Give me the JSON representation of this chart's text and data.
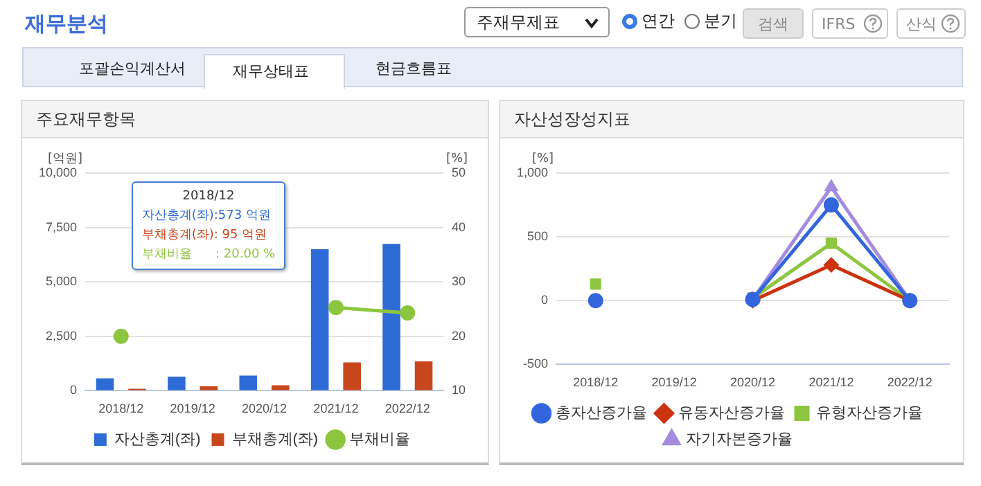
{
  "chart_data": [
    {
      "type": "other",
      "annotations": [
        "재무분석",
        "주재무제표",
        "연간",
        "분기",
        "검색",
        "IFRS",
        "산식",
        "포괄손익계산서",
        "재무상태표",
        "현금흐름표"
      ]
    },
    {
      "type": "bar",
      "title": "주요재무항목",
      "ylabel": "[억원]",
      "y2label": "[%]",
      "categories": [
        "2018/12",
        "2019/12",
        "2020/12",
        "2021/12",
        "2022/12"
      ],
      "series": [
        {
          "name": "자산총계(좌)",
          "color": "#2e6bd6",
          "values": [
            573,
            650,
            700,
            6500,
            6750
          ]
        },
        {
          "name": "부채총계(좌)",
          "color": "#c8461c",
          "values": [
            95,
            200,
            250,
            1300,
            1350
          ]
        },
        {
          "name": "부채비율",
          "type": "line",
          "axis": "y2",
          "marker": "circle",
          "color": "#8cc63f",
          "values": [
            20,
            null,
            null,
            25.3,
            24.3
          ]
        }
      ],
      "ylim": [
        0,
        10000
      ],
      "yticks": [
        {
          "value": 0,
          "label": "0"
        },
        {
          "value": 2500,
          "label": "2,500"
        },
        {
          "value": 5000,
          "label": "5,000"
        },
        {
          "value": 7500,
          "label": "7,500"
        },
        {
          "value": 10000,
          "label": "10,000"
        }
      ],
      "y2lim": [
        10,
        50
      ],
      "y2ticks": [
        10,
        20,
        30,
        40,
        50
      ],
      "grid": "y",
      "legend": "bottom",
      "annotations": [
        "2018/12",
        "자산총계(좌):573 억원",
        "부채총계(좌): 95 억원",
        "부채비율      : 20.00 %"
      ]
    },
    {
      "type": "line",
      "title": "자산성장성지표",
      "ylabel": "[%]",
      "categories": [
        "2018/12",
        "2019/12",
        "2020/12",
        "2021/12",
        "2022/12"
      ],
      "series": [
        {
          "name": "총자산증가율",
          "color": "#3366dd",
          "marker": "circle",
          "values": [
            0,
            null,
            10,
            750,
            0
          ]
        },
        {
          "name": "유동자산증가율",
          "color": "#cc3311",
          "marker": "diamond",
          "values": [
            null,
            null,
            0,
            280,
            0
          ]
        },
        {
          "name": "유형자산증가율",
          "color": "#8dc63f",
          "marker": "square",
          "values": [
            130,
            null,
            20,
            450,
            0
          ]
        },
        {
          "name": "자기자본증가율",
          "color": "#a58be0",
          "marker": "triangle",
          "values": [
            null,
            null,
            10,
            890,
            0
          ]
        }
      ],
      "ylim": [
        -500,
        1000
      ],
      "yticks": [
        {
          "value": -500,
          "label": "-500"
        },
        {
          "value": 0,
          "label": "0"
        },
        {
          "value": 500,
          "label": "500"
        },
        {
          "value": 1000,
          "label": "1,000"
        }
      ],
      "grid": "y",
      "legend": "bottom"
    }
  ]
}
